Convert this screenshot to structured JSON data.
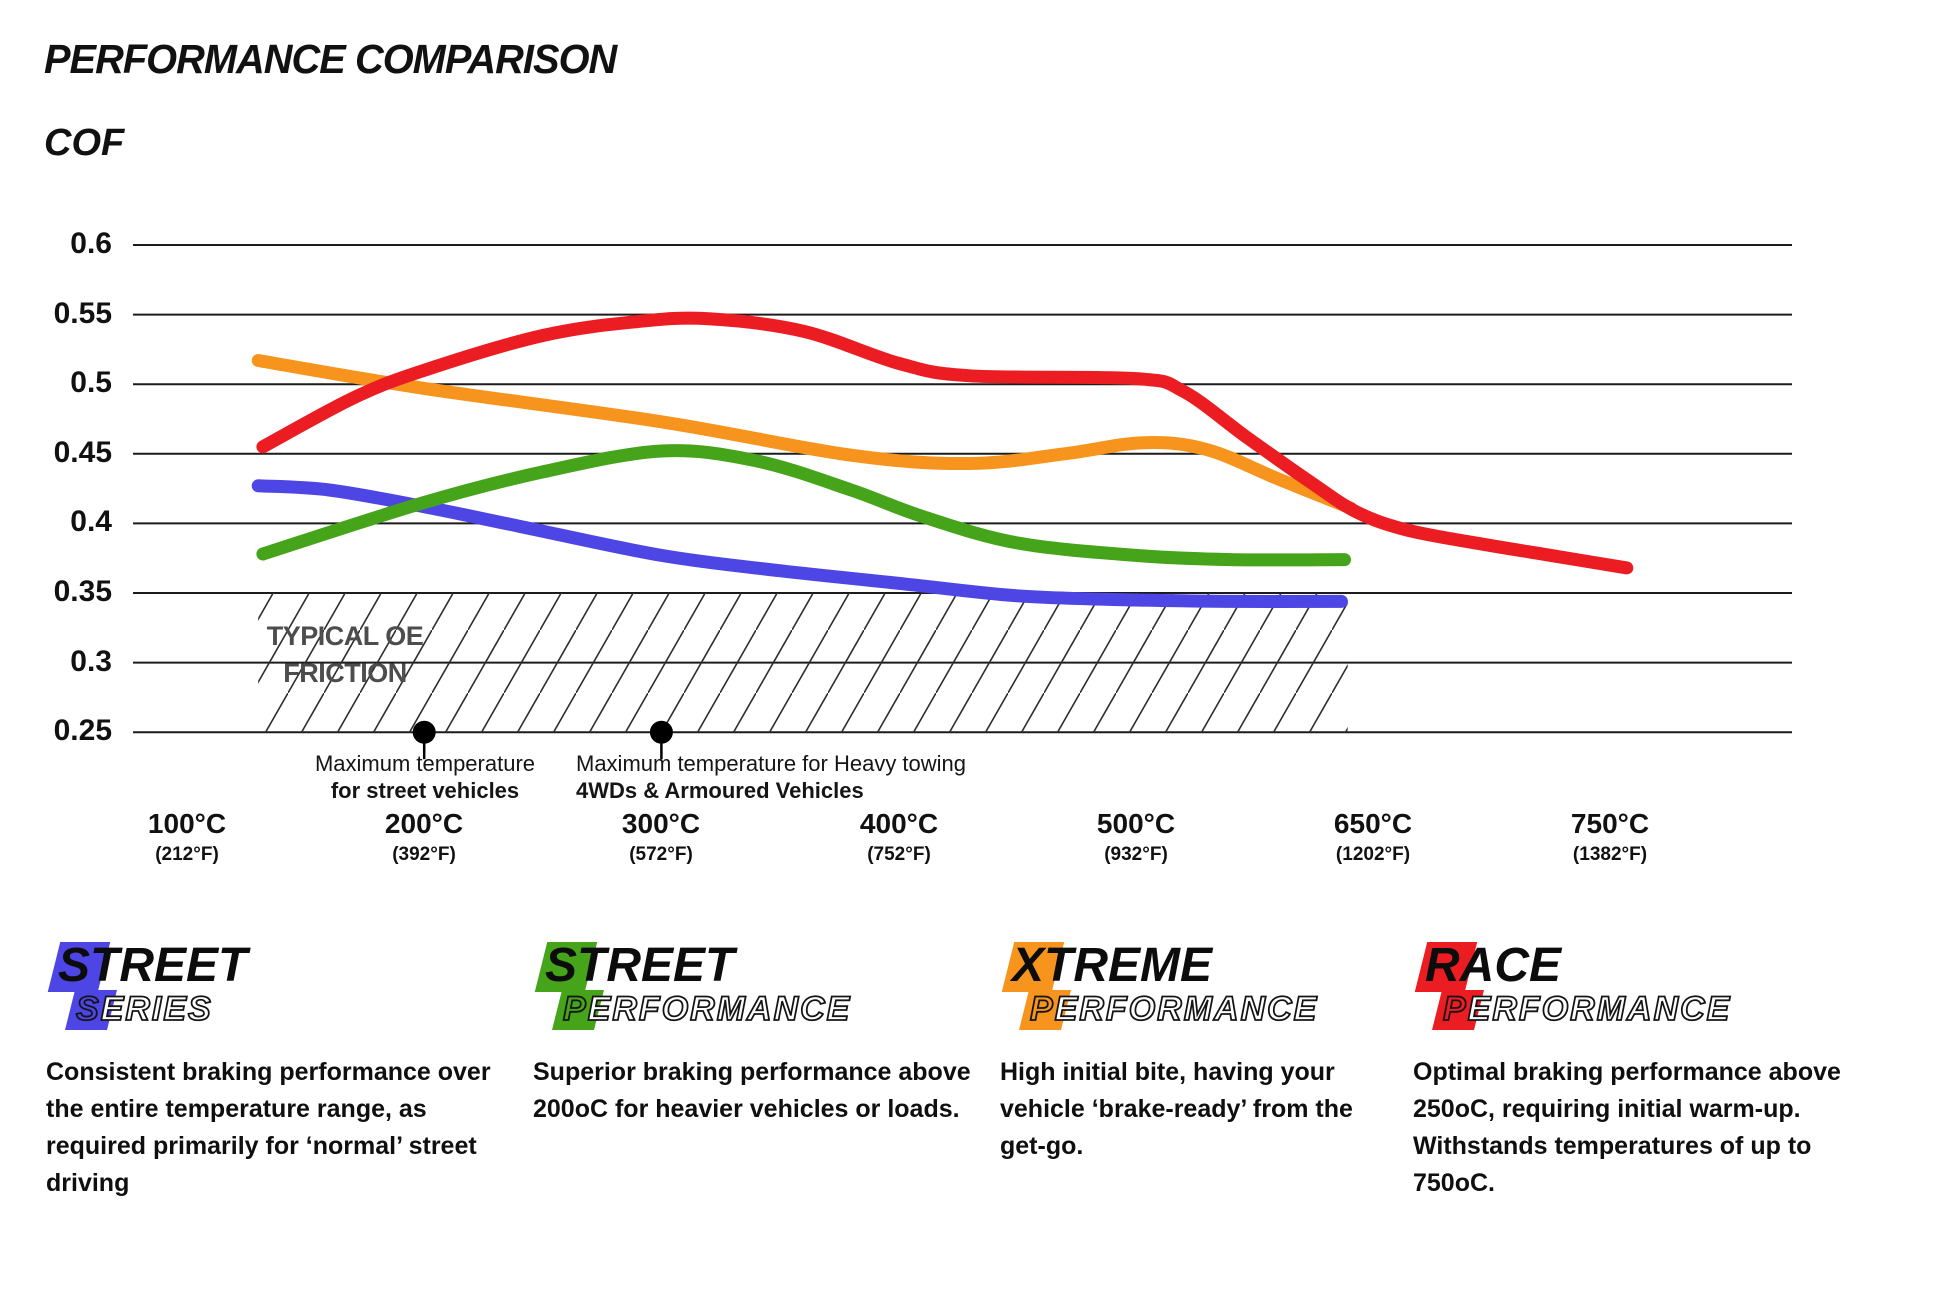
{
  "header": {
    "title": "PERFORMANCE COMPARISON"
  },
  "chart_data": {
    "type": "line",
    "title": "PERFORMANCE COMPARISON",
    "xlabel": "",
    "ylabel": "COF",
    "ylim": [
      0.25,
      0.6
    ],
    "y_step": 0.05,
    "grid": true,
    "legend_position": "bottom",
    "y_ticks": [
      "0.6",
      "0.55",
      "0.5",
      "0.45",
      "0.4",
      "0.35",
      "0.3",
      "0.25"
    ],
    "x_ticks": [
      {
        "c": 100,
        "label_c": "100°C",
        "label_f": "(212°F)"
      },
      {
        "c": 200,
        "label_c": "200°C",
        "label_f": "(392°F)"
      },
      {
        "c": 300,
        "label_c": "300°C",
        "label_f": "(572°F)"
      },
      {
        "c": 400,
        "label_c": "400°C",
        "label_f": "(752°F)"
      },
      {
        "c": 500,
        "label_c": "500°C",
        "label_f": "(932°F)"
      },
      {
        "c": 650,
        "label_c": "650°C",
        "label_f": "(1202°F)"
      },
      {
        "c": 750,
        "label_c": "750°C",
        "label_f": "(1382°F)"
      }
    ],
    "oe_band": {
      "label_line1": "TYPICAL OE",
      "label_line2": "FRICTION",
      "cof_from": 0.25,
      "cof_to": 0.35,
      "temp_from_c": 130,
      "temp_to_c": 634
    },
    "annotations": [
      {
        "temp_c": 200,
        "cof": 0.25,
        "line1": "Maximum temperature",
        "line2": "for street vehicles"
      },
      {
        "temp_c": 300,
        "cof": 0.25,
        "line1": "Maximum temperature for Heavy towing",
        "line2": "4WDs & Armoured Vehicles"
      }
    ],
    "series": [
      {
        "name": "Street Series",
        "color": "#4d46e4",
        "points": [
          [
            130,
            0.427
          ],
          [
            160,
            0.424
          ],
          [
            200,
            0.412
          ],
          [
            240,
            0.398
          ],
          [
            300,
            0.377
          ],
          [
            350,
            0.366
          ],
          [
            400,
            0.357
          ],
          [
            450,
            0.348
          ],
          [
            500,
            0.345
          ],
          [
            560,
            0.344
          ],
          [
            630,
            0.344
          ]
        ]
      },
      {
        "name": "Street Performance",
        "color": "#45a41a",
        "points": [
          [
            132,
            0.378
          ],
          [
            200,
            0.415
          ],
          [
            250,
            0.437
          ],
          [
            300,
            0.452
          ],
          [
            340,
            0.445
          ],
          [
            380,
            0.424
          ],
          [
            410,
            0.405
          ],
          [
            450,
            0.386
          ],
          [
            500,
            0.377
          ],
          [
            560,
            0.374
          ],
          [
            632,
            0.374
          ]
        ]
      },
      {
        "name": "Xtreme Performance",
        "color": "#f7941d",
        "points": [
          [
            130,
            0.517
          ],
          [
            200,
            0.497
          ],
          [
            300,
            0.473
          ],
          [
            380,
            0.449
          ],
          [
            430,
            0.443
          ],
          [
            470,
            0.45
          ],
          [
            505,
            0.458
          ],
          [
            545,
            0.453
          ],
          [
            590,
            0.432
          ],
          [
            636,
            0.411
          ]
        ]
      },
      {
        "name": "Race Performance",
        "color": "#ec1c23",
        "points": [
          [
            132,
            0.455
          ],
          [
            170,
            0.49
          ],
          [
            200,
            0.51
          ],
          [
            250,
            0.535
          ],
          [
            290,
            0.545
          ],
          [
            320,
            0.547
          ],
          [
            360,
            0.538
          ],
          [
            400,
            0.515
          ],
          [
            430,
            0.506
          ],
          [
            500,
            0.504
          ],
          [
            530,
            0.495
          ],
          [
            570,
            0.462
          ],
          [
            610,
            0.43
          ],
          [
            640,
            0.408
          ],
          [
            665,
            0.395
          ],
          [
            700,
            0.384
          ],
          [
            725,
            0.377
          ],
          [
            757,
            0.368
          ]
        ]
      }
    ]
  },
  "legend": {
    "items": [
      {
        "logo_line1": "STREET",
        "logo_line2_first": "S",
        "logo_line2_rest": "ERIES",
        "color": "#4d46e4",
        "description": "Consistent braking performance over the entire temperature range, as required primarily for ‘normal’ street driving"
      },
      {
        "logo_line1": "STREET",
        "logo_line2_first": "P",
        "logo_line2_rest": "ERFORMANCE",
        "color": "#45a41a",
        "description": "Superior braking performance above 200oC for heavier vehicles or loads."
      },
      {
        "logo_line1": "XTREME",
        "logo_line2_first": "P",
        "logo_line2_rest": "ERFORMANCE",
        "color": "#f7941d",
        "description": "High initial bite, having your vehicle ‘brake-ready’ from the get-go."
      },
      {
        "logo_line1": "RACE",
        "logo_line2_first": "P",
        "logo_line2_rest": "ERFORMANCE",
        "color": "#ec1c23",
        "description": "Optimal braking performance above 250oC, requiring initial warm-up. Withstands temperatures of up to 750oC."
      }
    ]
  }
}
